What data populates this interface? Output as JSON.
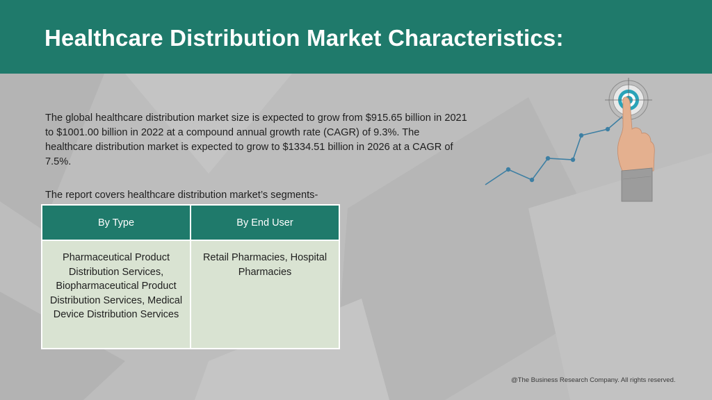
{
  "header": {
    "title": "Healthcare Distribution Market Characteristics:"
  },
  "intro": {
    "text": "The global healthcare distribution market size is expected to grow from $915.65 billion in 2021 to $1001.00 billion in 2022 at a compound annual growth rate (CAGR) of 9.3%. The healthcare distribution market is expected to grow to $1334.51 billion in 2026 at a CAGR of 7.5%."
  },
  "segments": {
    "label": "The report covers healthcare distribution market’s segments-",
    "headers": [
      "By Type",
      "By End User"
    ],
    "cells": [
      "Pharmaceutical Product Distribution Services, Biopharmaceutical Product Distribution Services, Medical Device Distribution Services",
      "Retail Pharmacies, Hospital Pharmacies"
    ]
  },
  "illustration": {
    "icon": "growth-chart-target-icon"
  },
  "footer": {
    "copyright": "@The Business Research Company. All rights reserved."
  },
  "colors": {
    "header_bg": "#1f7a6b",
    "table_header_bg": "#1f7a6b",
    "table_cell_bg": "#d9e3d2",
    "page_bg": "#bdbdbd",
    "chart_line": "#3d7fa3"
  }
}
